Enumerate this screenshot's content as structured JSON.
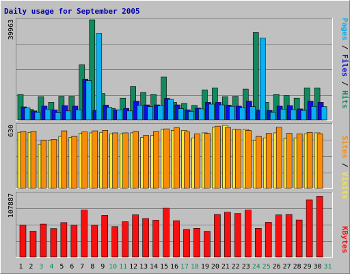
{
  "chart_data": {
    "type": "bar",
    "title": "Daily usage for September 2005",
    "days": [
      "1",
      "2",
      "3",
      "4",
      "5",
      "6",
      "7",
      "8",
      "9",
      "10",
      "11",
      "12",
      "13",
      "14",
      "15",
      "16",
      "17",
      "18",
      "19",
      "20",
      "21",
      "22",
      "23",
      "24",
      "25",
      "26",
      "27",
      "28",
      "29",
      "30",
      "31"
    ],
    "weekend_days": [
      "3",
      "4",
      "10",
      "11",
      "17",
      "18",
      "24",
      "25",
      "31"
    ],
    "hits_panel": {
      "max_label": "39963",
      "ylim": [
        0,
        39963
      ],
      "legend": [
        "Pages",
        "Files",
        "Hits"
      ],
      "series": [
        {
          "name": "Hits",
          "color": "#138a5e",
          "values": [
            10200,
            4200,
            9300,
            7000,
            9400,
            9400,
            22000,
            39963,
            10500,
            4600,
            8700,
            13300,
            11000,
            10200,
            17200,
            7000,
            6600,
            5800,
            12000,
            12800,
            9300,
            9400,
            12300,
            34900,
            7000,
            10200,
            9700,
            8700,
            12800,
            12800,
            0
          ]
        },
        {
          "name": "Files",
          "color": "#1010d8",
          "values": [
            5200,
            3600,
            5500,
            4000,
            5700,
            5500,
            16300,
            3800,
            5900,
            4000,
            4600,
            7500,
            6000,
            6000,
            8600,
            6000,
            4000,
            4700,
            7000,
            7000,
            5900,
            5500,
            7500,
            3900,
            3800,
            5500,
            5700,
            4400,
            7500,
            7000,
            0
          ]
        },
        {
          "name": "Pages",
          "color": "#0ab0f0",
          "values": [
            4800,
            3000,
            4300,
            2900,
            3600,
            4000,
            15700,
            34600,
            5000,
            3900,
            3600,
            5800,
            5300,
            5600,
            8200,
            4500,
            3400,
            4400,
            6300,
            6000,
            5400,
            4800,
            5300,
            32700,
            3000,
            4300,
            4100,
            3800,
            5400,
            5300,
            0
          ]
        }
      ]
    },
    "visits_panel": {
      "max_label": "630",
      "ylim": [
        0,
        630
      ],
      "legend": [
        "Sites",
        "Visits"
      ],
      "series": [
        {
          "name": "Visits",
          "color": "#f8e838",
          "values": [
            560,
            560,
            440,
            480,
            520,
            510,
            550,
            555,
            560,
            545,
            545,
            555,
            510,
            530,
            590,
            580,
            580,
            505,
            555,
            612,
            630,
            590,
            590,
            480,
            505,
            555,
            500,
            505,
            545,
            555,
            0
          ]
        },
        {
          "name": "Sites",
          "color": "#f88c0a",
          "values": [
            570,
            570,
            480,
            490,
            575,
            520,
            565,
            575,
            580,
            555,
            555,
            570,
            530,
            570,
            595,
            605,
            565,
            545,
            550,
            622,
            610,
            590,
            580,
            520,
            550,
            612,
            550,
            545,
            560,
            545,
            0
          ]
        }
      ]
    },
    "kbytes_panel": {
      "max_label": "107887",
      "ylim": [
        0,
        107887
      ],
      "legend": [
        "KBytes"
      ],
      "series": [
        {
          "name": "KBytes",
          "color": "#f81010",
          "values": [
            54500,
            44000,
            56200,
            48500,
            58800,
            54500,
            80100,
            54500,
            71000,
            51800,
            60200,
            72000,
            65700,
            62800,
            83300,
            62000,
            47100,
            48900,
            43800,
            72600,
            76400,
            74300,
            80100,
            48900,
            59300,
            71900,
            72600,
            63200,
            97500,
            103800,
            0
          ]
        }
      ]
    }
  }
}
